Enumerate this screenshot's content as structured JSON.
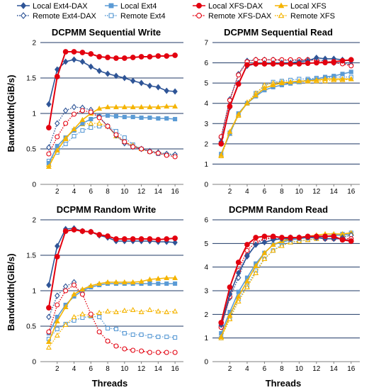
{
  "figure": {
    "ylabel": "Bandwidth(GiB/s)",
    "xlabel": "Threads"
  },
  "legend": [
    {
      "name": "Local Ext4-DAX",
      "color": "#2f5597",
      "marker": "diamond-filled",
      "line": "solid"
    },
    {
      "name": "Remote Ext4-DAX",
      "color": "#2f5597",
      "marker": "diamond-open",
      "line": "dotted"
    },
    {
      "name": "Local Ext4",
      "color": "#5b9bd5",
      "marker": "square-filled",
      "line": "solid"
    },
    {
      "name": "Remote Ext4",
      "color": "#5b9bd5",
      "marker": "square-open",
      "line": "dotted"
    },
    {
      "name": "Local XFS-DAX",
      "color": "#e3000f",
      "marker": "circle-filled",
      "line": "solid"
    },
    {
      "name": "Remote XFS-DAX",
      "color": "#e3000f",
      "marker": "circle-open",
      "line": "dotted"
    },
    {
      "name": "Local XFS",
      "color": "#f5b400",
      "marker": "triangle-filled",
      "line": "solid"
    },
    {
      "name": "Remote XFS",
      "color": "#f5b400",
      "marker": "triangle-open",
      "line": "dotted"
    }
  ],
  "chart_data": [
    {
      "type": "line",
      "title": "DCPMM Sequential Write",
      "ylabel": "Bandwidth(GiB/s)",
      "xlabel": "",
      "x": [
        1,
        2,
        3,
        4,
        5,
        6,
        7,
        8,
        9,
        10,
        11,
        12,
        13,
        14,
        15,
        16
      ],
      "xticks": [
        "2",
        "4",
        "6",
        "8",
        "10",
        "12",
        "14",
        "16"
      ],
      "ylim": [
        0,
        2
      ],
      "yticks": [
        "0",
        "0.5",
        "1",
        "1.5",
        "2"
      ],
      "series": [
        {
          "name": "Local Ext4-DAX",
          "values": [
            1.13,
            1.62,
            1.73,
            1.76,
            1.73,
            1.66,
            1.6,
            1.56,
            1.53,
            1.5,
            1.46,
            1.43,
            1.39,
            1.37,
            1.32,
            1.31
          ]
        },
        {
          "name": "Remote Ext4-DAX",
          "values": [
            0.52,
            0.86,
            1.04,
            1.09,
            1.08,
            1.05,
            0.95,
            0.82,
            0.69,
            0.58,
            0.53,
            0.5,
            0.47,
            0.45,
            0.43,
            0.42
          ]
        },
        {
          "name": "Local Ext4",
          "values": [
            0.3,
            0.54,
            0.66,
            0.76,
            0.86,
            0.92,
            0.96,
            0.97,
            0.96,
            0.95,
            0.95,
            0.94,
            0.94,
            0.93,
            0.93,
            0.92
          ]
        },
        {
          "name": "Remote Ext4",
          "values": [
            0.33,
            0.45,
            0.57,
            0.68,
            0.76,
            0.8,
            0.82,
            0.82,
            0.75,
            0.66,
            0.56,
            0.5,
            0.46,
            0.43,
            0.42,
            0.41
          ]
        },
        {
          "name": "Local XFS-DAX",
          "values": [
            0.8,
            1.52,
            1.87,
            1.87,
            1.86,
            1.84,
            1.8,
            1.79,
            1.78,
            1.78,
            1.79,
            1.8,
            1.8,
            1.81,
            1.81,
            1.82
          ]
        },
        {
          "name": "Remote XFS-DAX",
          "values": [
            0.43,
            0.67,
            0.86,
            0.99,
            1.04,
            1.02,
            0.94,
            0.82,
            0.7,
            0.6,
            0.53,
            0.5,
            0.46,
            0.44,
            0.41,
            0.39
          ]
        },
        {
          "name": "Local XFS",
          "values": [
            0.25,
            0.48,
            0.65,
            0.78,
            0.91,
            1.0,
            1.07,
            1.09,
            1.09,
            1.09,
            1.09,
            1.09,
            1.09,
            1.09,
            1.1,
            1.1
          ]
        },
        {
          "name": "Remote XFS",
          "values": [
            0.28,
            0.48,
            0.64,
            0.77,
            0.85,
            0.86,
            0.86,
            0.82,
            0.68,
            0.6,
            0.55,
            0.5,
            0.47,
            0.45,
            0.43,
            0.42
          ]
        }
      ]
    },
    {
      "type": "line",
      "title": "DCPMM  Sequential Read",
      "ylabel": "",
      "xlabel": "",
      "x": [
        1,
        2,
        3,
        4,
        5,
        6,
        7,
        8,
        9,
        10,
        11,
        12,
        13,
        14,
        15,
        16
      ],
      "xticks": [
        "2",
        "4",
        "6",
        "8",
        "10",
        "12",
        "14",
        "16"
      ],
      "ylim": [
        0,
        7
      ],
      "yticks": [
        "0",
        "1",
        "2",
        "3",
        "4",
        "5",
        "6",
        "7"
      ],
      "series": [
        {
          "name": "Local Ext4-DAX",
          "values": [
            2.1,
            3.8,
            5.0,
            5.85,
            5.95,
            5.98,
            5.98,
            6.0,
            6.0,
            6.05,
            6.1,
            6.25,
            6.2,
            6.2,
            6.15,
            6.1
          ]
        },
        {
          "name": "Remote Ext4-DAX",
          "values": [
            2.3,
            4.2,
            5.45,
            6.1,
            6.15,
            6.15,
            6.15,
            6.12,
            6.12,
            6.12,
            6.15,
            6.15,
            6.1,
            6.0,
            6.0,
            5.9
          ]
        },
        {
          "name": "Local Ext4",
          "values": [
            1.5,
            2.5,
            3.5,
            4.0,
            4.35,
            4.65,
            4.8,
            4.9,
            4.98,
            5.05,
            5.15,
            5.2,
            5.3,
            5.35,
            5.45,
            5.55
          ]
        },
        {
          "name": "Remote Ext4",
          "values": [
            1.4,
            2.55,
            3.4,
            4.0,
            4.5,
            4.85,
            5.05,
            5.1,
            5.15,
            5.2,
            5.2,
            5.25,
            5.25,
            5.3,
            5.3,
            5.3
          ]
        },
        {
          "name": "Local XFS-DAX",
          "values": [
            2.0,
            3.85,
            4.95,
            5.9,
            5.95,
            5.95,
            5.95,
            5.95,
            5.95,
            5.95,
            5.98,
            6.0,
            6.02,
            6.05,
            6.1,
            6.15
          ]
        },
        {
          "name": "Remote XFS-DAX",
          "values": [
            2.35,
            4.15,
            5.4,
            6.05,
            6.15,
            6.15,
            6.15,
            6.15,
            6.15,
            6.15,
            6.15,
            6.1,
            6.0,
            6.0,
            5.95,
            5.85
          ]
        },
        {
          "name": "Local XFS",
          "values": [
            1.45,
            2.6,
            3.45,
            4.0,
            4.4,
            4.75,
            4.9,
            5.0,
            5.05,
            5.1,
            5.1,
            5.15,
            5.2,
            5.2,
            5.2,
            5.2
          ]
        },
        {
          "name": "Remote XFS",
          "values": [
            1.4,
            2.5,
            3.4,
            4.05,
            4.5,
            4.9,
            5.0,
            5.05,
            5.05,
            5.05,
            5.1,
            5.1,
            5.1,
            5.15,
            5.15,
            5.2
          ]
        }
      ]
    },
    {
      "type": "line",
      "title": "DCPMM Random Write",
      "ylabel": "Bandwidth(GiB/s)",
      "xlabel": "Threads",
      "x": [
        1,
        2,
        3,
        4,
        5,
        6,
        7,
        8,
        9,
        10,
        11,
        12,
        13,
        14,
        15,
        16
      ],
      "xticks": [
        "2",
        "4",
        "6",
        "8",
        "10",
        "12",
        "14",
        "16"
      ],
      "ylim": [
        0,
        2
      ],
      "yticks": [
        "0",
        "0.5",
        "1",
        "1.5",
        "2"
      ],
      "series": [
        {
          "name": "Local Ext4-DAX",
          "values": [
            1.08,
            1.63,
            1.87,
            1.88,
            1.84,
            1.83,
            1.78,
            1.75,
            1.7,
            1.7,
            1.7,
            1.7,
            1.7,
            1.69,
            1.69,
            1.68
          ]
        },
        {
          "name": "Remote Ext4-DAX",
          "values": [
            0.63,
            0.93,
            1.06,
            1.12,
            null,
            null,
            null,
            null,
            null,
            null,
            null,
            null,
            null,
            null,
            null,
            null
          ]
        },
        {
          "name": "Local Ext4",
          "values": [
            0.4,
            0.63,
            0.8,
            0.92,
            1.0,
            1.05,
            1.08,
            1.1,
            1.1,
            1.1,
            1.1,
            1.1,
            1.1,
            1.1,
            1.1,
            1.1
          ]
        },
        {
          "name": "Remote Ext4",
          "values": [
            0.32,
            0.46,
            0.53,
            0.58,
            0.62,
            0.64,
            0.63,
            0.47,
            0.46,
            0.4,
            0.38,
            0.38,
            0.36,
            0.35,
            0.35,
            0.34
          ]
        },
        {
          "name": "Local XFS-DAX",
          "values": [
            0.76,
            1.48,
            1.84,
            1.86,
            1.84,
            1.83,
            1.79,
            1.77,
            1.73,
            1.73,
            1.73,
            1.73,
            1.73,
            1.72,
            1.73,
            1.74
          ]
        },
        {
          "name": "Remote XFS-DAX",
          "values": [
            0.42,
            0.8,
            1.0,
            1.08,
            0.95,
            0.67,
            0.42,
            0.29,
            0.22,
            0.18,
            0.16,
            0.15,
            0.13,
            0.13,
            0.13,
            0.13
          ]
        },
        {
          "name": "Local XFS",
          "values": [
            0.28,
            0.57,
            0.77,
            0.95,
            1.02,
            1.07,
            1.1,
            1.12,
            1.12,
            1.12,
            1.12,
            1.13,
            1.16,
            1.17,
            1.18,
            1.18
          ]
        },
        {
          "name": "Remote XFS",
          "values": [
            0.2,
            0.37,
            0.52,
            0.63,
            0.67,
            0.65,
            0.69,
            0.71,
            0.7,
            0.72,
            0.73,
            0.7,
            0.73,
            0.71,
            0.7,
            0.71
          ]
        }
      ]
    },
    {
      "type": "line",
      "title": "DCPMM  Random Read",
      "ylabel": "",
      "xlabel": "Threads",
      "x": [
        1,
        2,
        3,
        4,
        5,
        6,
        7,
        8,
        9,
        10,
        11,
        12,
        13,
        14,
        15,
        16
      ],
      "xticks": [
        "2",
        "4",
        "6",
        "8",
        "10",
        "12",
        "14",
        "16"
      ],
      "ylim": [
        0,
        6
      ],
      "yticks": [
        "0",
        "1",
        "2",
        "3",
        "4",
        "5",
        "6"
      ],
      "series": [
        {
          "name": "Local Ext4-DAX",
          "values": [
            1.55,
            2.85,
            3.75,
            4.45,
            4.95,
            5.05,
            5.15,
            5.2,
            5.2,
            5.25,
            5.25,
            5.25,
            5.2,
            5.2,
            5.2,
            5.1
          ]
        },
        {
          "name": "Remote Ext4-DAX",
          "values": [
            1.5,
            2.7,
            3.55,
            4.5,
            4.95,
            5.2,
            5.2,
            5.2,
            5.25,
            5.25,
            5.25,
            5.25,
            5.2,
            5.2,
            5.25,
            5.35
          ]
        },
        {
          "name": "Local Ext4",
          "values": [
            1.2,
            2.1,
            2.95,
            3.55,
            4.15,
            4.6,
            4.95,
            5.05,
            5.15,
            5.2,
            5.25,
            5.25,
            5.3,
            5.35,
            5.35,
            5.4
          ]
        },
        {
          "name": "Remote Ext4",
          "values": [
            1.0,
            1.85,
            2.65,
            3.2,
            3.85,
            4.35,
            4.7,
            4.95,
            5.05,
            5.1,
            5.15,
            5.2,
            5.3,
            5.35,
            5.4,
            5.45
          ]
        },
        {
          "name": "Local XFS-DAX",
          "values": [
            1.65,
            3.15,
            4.2,
            4.95,
            5.25,
            5.3,
            5.3,
            5.25,
            5.25,
            5.25,
            5.3,
            5.3,
            5.3,
            5.3,
            5.15,
            5.1
          ]
        },
        {
          "name": "Remote XFS-DAX",
          "values": [
            1.45,
            2.75,
            3.85,
            4.7,
            5.05,
            5.2,
            5.25,
            5.25,
            5.2,
            5.25,
            5.25,
            5.25,
            5.2,
            5.2,
            5.2,
            5.2
          ]
        },
        {
          "name": "Local XFS",
          "values": [
            1.05,
            1.95,
            2.75,
            3.4,
            4.05,
            4.6,
            4.95,
            5.1,
            5.2,
            5.25,
            5.3,
            5.35,
            5.4,
            5.4,
            5.4,
            5.45
          ]
        },
        {
          "name": "Remote XFS",
          "values": [
            1.0,
            1.8,
            2.55,
            3.15,
            3.75,
            4.35,
            4.7,
            4.9,
            5.05,
            5.1,
            5.15,
            5.2,
            5.3,
            5.35,
            5.35,
            5.4
          ]
        }
      ]
    }
  ]
}
